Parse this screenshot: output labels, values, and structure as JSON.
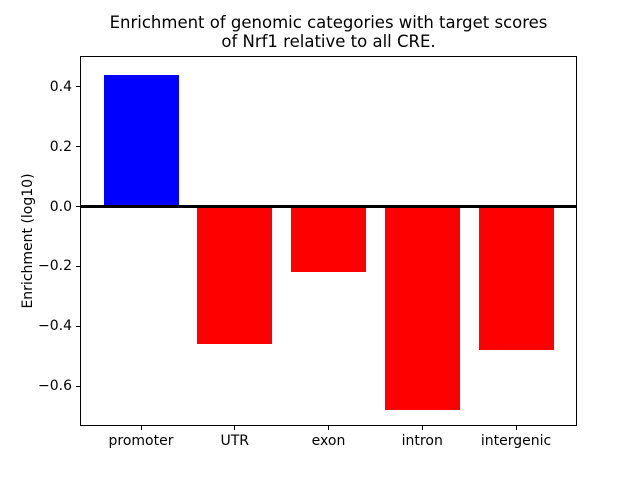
{
  "chart_data": {
    "type": "bar",
    "title": "Enrichment of genomic categories with target scores\nof Nrf1 relative to all CRE.",
    "xlabel": "",
    "ylabel": "Enrichment (log10)",
    "categories": [
      "promoter",
      "UTR",
      "exon",
      "intron",
      "intergenic"
    ],
    "values": [
      0.44,
      -0.46,
      -0.22,
      -0.68,
      -0.48
    ],
    "bar_colors": [
      "#0000ff",
      "#ff0000",
      "#ff0000",
      "#ff0000",
      "#ff0000"
    ],
    "positive_color": "#0000ff",
    "negative_color": "#ff0000",
    "ytick_values": [
      0.4,
      0.2,
      0.0,
      -0.2,
      -0.4,
      -0.6
    ],
    "ytick_labels": [
      "0.4",
      "0.2",
      "0.0",
      "−0.2",
      "−0.4",
      "−0.6"
    ],
    "ylim": [
      -0.73,
      0.5
    ],
    "bar_width_fraction": 0.8,
    "zero_line": true,
    "grid": false,
    "legend": null
  }
}
